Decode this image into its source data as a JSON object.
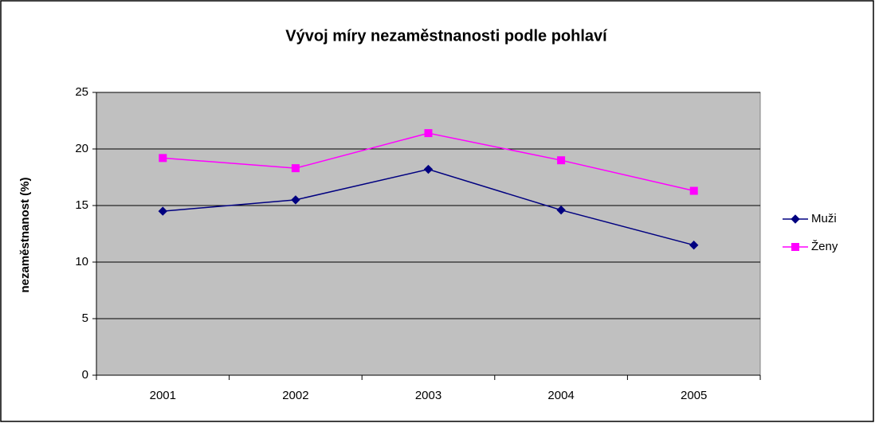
{
  "chart_data": {
    "type": "line",
    "title": "Vývoj míry nezaměstnanosti podle pohlaví",
    "y_label": "nezaměstnanost (%)",
    "categories": [
      "2001",
      "2002",
      "2003",
      "2004",
      "2005"
    ],
    "series": [
      {
        "name": "Muži",
        "color": "#000080",
        "marker": "diamond",
        "values": [
          14.5,
          15.5,
          18.2,
          14.6,
          11.5
        ]
      },
      {
        "name": "Ženy",
        "color": "#ff00ff",
        "marker": "square",
        "values": [
          19.2,
          18.3,
          21.4,
          19.0,
          16.3
        ]
      }
    ],
    "ylim": [
      0,
      25
    ],
    "yticks": [
      0,
      5,
      10,
      15,
      20,
      25
    ],
    "grid": true,
    "legend": "right"
  }
}
